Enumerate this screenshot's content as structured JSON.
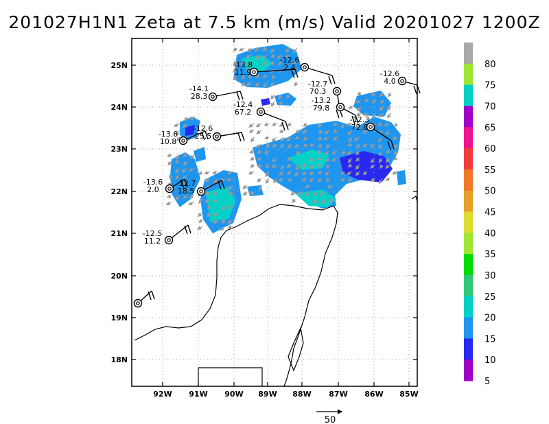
{
  "title": "201027H1N1 Zeta at 7.5 km (m/s) Valid 20201027 1200Z",
  "lat_labels": [
    "25N",
    "24N",
    "23N",
    "22N",
    "21N",
    "20N",
    "19N",
    "18N"
  ],
  "lon_labels": [
    "92W",
    "91W",
    "90W",
    "89W",
    "88W",
    "87W",
    "86W",
    "85W"
  ],
  "colorbar": {
    "labels": [
      "80",
      "75",
      "70",
      "65",
      "60",
      "55",
      "50",
      "45",
      "40",
      "35",
      "30",
      "25",
      "20",
      "15",
      "10",
      "5"
    ],
    "colors": [
      "#a8a8a8",
      "#a0e632",
      "#00d2c8",
      "#a000c8",
      "#f0148c",
      "#f03c3c",
      "#f07828",
      "#e6a028",
      "#dcdc32",
      "#a0e632",
      "#00dc00",
      "#32c878",
      "#00d2c8",
      "#1e96f0",
      "#2828f0",
      "#a000c8"
    ]
  },
  "stations": [
    {
      "top": "-13.8",
      "bottom": "11.9"
    },
    {
      "top": "-12.6",
      "bottom": "2.4"
    },
    {
      "top": "-12.6",
      "bottom": "4.0"
    },
    {
      "top": "-14.1",
      "bottom": "28.3"
    },
    {
      "top": "-12.7",
      "bottom": "70.3"
    },
    {
      "top": "-13.2",
      "bottom": "79.8"
    },
    {
      "top": "-12.4",
      "bottom": "67.2"
    },
    {
      "top": "-12.3",
      "bottom": "72.8"
    },
    {
      "top": "-12.6",
      "bottom": "25.5"
    },
    {
      "top": "-13.6",
      "bottom": "10.8"
    },
    {
      "top": "-13.6",
      "bottom": "2.0"
    },
    {
      "top": "-12.7",
      "bottom": "18.5"
    },
    {
      "top": "-12.5",
      "bottom": "11.2"
    },
    {
      "top": "",
      "bottom": ""
    }
  ],
  "reference_vector": {
    "label": "50"
  }
}
